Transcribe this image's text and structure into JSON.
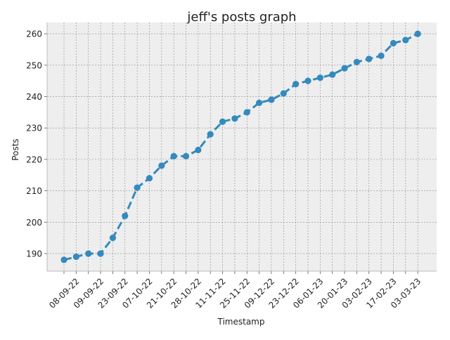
{
  "chart_data": {
    "type": "line",
    "title": "jeff's posts graph",
    "xlabel": "Timestamp",
    "ylabel": "Posts",
    "ylim": [
      184.4,
      263.6
    ],
    "y_ticks": [
      190,
      200,
      210,
      220,
      230,
      240,
      250,
      260
    ],
    "x_tick_labels": [
      "08-09-22",
      "09-09-22",
      "23-09-22",
      "07-10-22",
      "21-10-22",
      "28-10-22",
      "11-11-22",
      "25-11-22",
      "09-12-22",
      "23-12-22",
      "06-01-23",
      "20-01-23",
      "03-02-23",
      "17-02-23",
      "03-03-23"
    ],
    "grid": true,
    "line_style": "dashed",
    "marker": "circle",
    "series": [
      {
        "color": "#348abd",
        "values": [
          188,
          189,
          190,
          190,
          195,
          202,
          211,
          214,
          218,
          221,
          221,
          223,
          228,
          232,
          233,
          235,
          238,
          239,
          241,
          244,
          245,
          246,
          247,
          249,
          251,
          252,
          253,
          257,
          258,
          260
        ]
      }
    ]
  }
}
